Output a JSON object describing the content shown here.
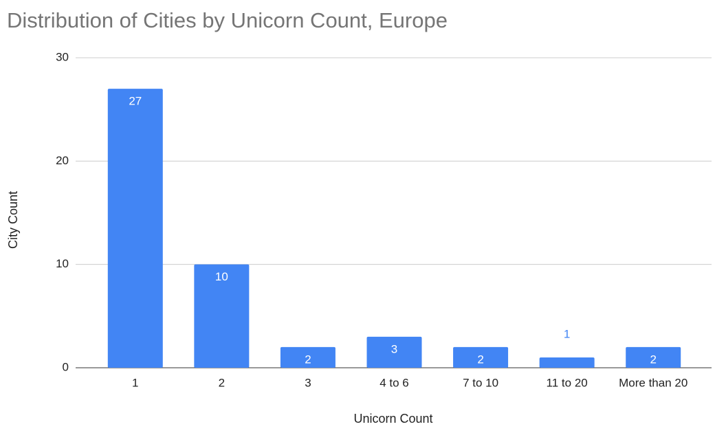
{
  "chart_data": {
    "type": "bar",
    "title": "Distribution of Cities by Unicorn Count, Europe",
    "x_label": "Unicorn Count",
    "y_label": "City Count",
    "categories": [
      "1",
      "2",
      "3",
      "4 to 6",
      "7 to 10",
      "11 to 20",
      "More than 20"
    ],
    "values": [
      27,
      10,
      2,
      3,
      2,
      1,
      2
    ],
    "color": "#4285f4",
    "ylim": [
      0,
      30
    ],
    "yticks": [
      0,
      10,
      20,
      30
    ],
    "grid": true
  }
}
